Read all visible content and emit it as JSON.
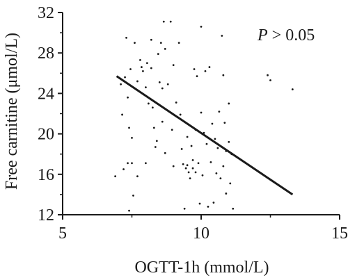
{
  "chart_data": {
    "type": "scatter",
    "xlabel": "OGTT-1h (mmol/L)",
    "ylabel": "Free carnitine (μmol/L)",
    "annotation": {
      "italic": "P",
      "rest": " > 0.05"
    },
    "xlim": [
      5,
      15
    ],
    "ylim": [
      12,
      32
    ],
    "xticks": [
      5,
      10,
      15
    ],
    "yticks": [
      12,
      16,
      20,
      24,
      28,
      32
    ],
    "grid": false,
    "colors": {
      "points": "#1a1a1a",
      "axis": "#1a1a1a",
      "line": "#1a1a1a"
    },
    "regression_line": {
      "x": [
        6.95,
        13.3
      ],
      "y": [
        25.7,
        14.0
      ]
    },
    "points": [
      {
        "x": 6.9,
        "y": 15.8
      },
      {
        "x": 7.1,
        "y": 24.9
      },
      {
        "x": 7.15,
        "y": 21.9
      },
      {
        "x": 7.2,
        "y": 16.5
      },
      {
        "x": 7.25,
        "y": 25.6
      },
      {
        "x": 7.3,
        "y": 29.5
      },
      {
        "x": 7.35,
        "y": 23.6
      },
      {
        "x": 7.35,
        "y": 17.1
      },
      {
        "x": 7.4,
        "y": 20.6
      },
      {
        "x": 7.4,
        "y": 12.4
      },
      {
        "x": 7.45,
        "y": 26.4
      },
      {
        "x": 7.5,
        "y": 19.6
      },
      {
        "x": 7.5,
        "y": 17.1
      },
      {
        "x": 7.55,
        "y": 13.9
      },
      {
        "x": 7.6,
        "y": 29.0
      },
      {
        "x": 7.7,
        "y": 25.2
      },
      {
        "x": 7.7,
        "y": 15.8
      },
      {
        "x": 7.8,
        "y": 27.3
      },
      {
        "x": 7.85,
        "y": 26.6
      },
      {
        "x": 7.9,
        "y": 26.2
      },
      {
        "x": 8.0,
        "y": 24.6
      },
      {
        "x": 8.0,
        "y": 17.1
      },
      {
        "x": 8.05,
        "y": 27.0
      },
      {
        "x": 8.1,
        "y": 23.0
      },
      {
        "x": 8.2,
        "y": 29.3
      },
      {
        "x": 8.2,
        "y": 26.5
      },
      {
        "x": 8.25,
        "y": 22.6
      },
      {
        "x": 8.3,
        "y": 20.6
      },
      {
        "x": 8.35,
        "y": 18.7
      },
      {
        "x": 8.4,
        "y": 19.3
      },
      {
        "x": 8.45,
        "y": 27.9
      },
      {
        "x": 8.5,
        "y": 25.1
      },
      {
        "x": 8.55,
        "y": 29.0
      },
      {
        "x": 8.6,
        "y": 24.5
      },
      {
        "x": 8.6,
        "y": 21.2
      },
      {
        "x": 8.65,
        "y": 31.1
      },
      {
        "x": 8.7,
        "y": 28.4
      },
      {
        "x": 8.7,
        "y": 18.1
      },
      {
        "x": 8.8,
        "y": 24.9
      },
      {
        "x": 8.85,
        "y": 22.2
      },
      {
        "x": 8.9,
        "y": 31.1
      },
      {
        "x": 8.95,
        "y": 20.4
      },
      {
        "x": 9.0,
        "y": 26.8
      },
      {
        "x": 9.0,
        "y": 16.8
      },
      {
        "x": 9.1,
        "y": 23.1
      },
      {
        "x": 9.2,
        "y": 29.0
      },
      {
        "x": 9.25,
        "y": 21.9
      },
      {
        "x": 9.3,
        "y": 18.5
      },
      {
        "x": 9.35,
        "y": 17.0
      },
      {
        "x": 9.4,
        "y": 12.6
      },
      {
        "x": 9.45,
        "y": 16.6
      },
      {
        "x": 9.5,
        "y": 19.7
      },
      {
        "x": 9.5,
        "y": 16.9
      },
      {
        "x": 9.55,
        "y": 16.2
      },
      {
        "x": 9.6,
        "y": 15.6
      },
      {
        "x": 9.65,
        "y": 18.8
      },
      {
        "x": 9.7,
        "y": 17.4
      },
      {
        "x": 9.7,
        "y": 16.6
      },
      {
        "x": 9.75,
        "y": 26.4
      },
      {
        "x": 9.8,
        "y": 20.4
      },
      {
        "x": 9.8,
        "y": 16.2
      },
      {
        "x": 9.85,
        "y": 25.7
      },
      {
        "x": 9.9,
        "y": 17.1
      },
      {
        "x": 9.95,
        "y": 13.1
      },
      {
        "x": 10.0,
        "y": 30.6
      },
      {
        "x": 10.0,
        "y": 22.1
      },
      {
        "x": 10.05,
        "y": 15.9
      },
      {
        "x": 10.1,
        "y": 20.1
      },
      {
        "x": 10.15,
        "y": 26.2
      },
      {
        "x": 10.2,
        "y": 19.0
      },
      {
        "x": 10.25,
        "y": 12.8
      },
      {
        "x": 10.3,
        "y": 26.6
      },
      {
        "x": 10.35,
        "y": 17.2
      },
      {
        "x": 10.4,
        "y": 21.0
      },
      {
        "x": 10.45,
        "y": 13.2
      },
      {
        "x": 10.5,
        "y": 19.5
      },
      {
        "x": 10.55,
        "y": 16.1
      },
      {
        "x": 10.6,
        "y": 18.6
      },
      {
        "x": 10.65,
        "y": 22.2
      },
      {
        "x": 10.7,
        "y": 15.6
      },
      {
        "x": 10.75,
        "y": 29.7
      },
      {
        "x": 10.8,
        "y": 25.8
      },
      {
        "x": 10.8,
        "y": 16.8
      },
      {
        "x": 10.85,
        "y": 21.1
      },
      {
        "x": 10.9,
        "y": 18.3
      },
      {
        "x": 10.9,
        "y": 14.1
      },
      {
        "x": 11.0,
        "y": 23.0
      },
      {
        "x": 11.0,
        "y": 19.2
      },
      {
        "x": 11.05,
        "y": 15.1
      },
      {
        "x": 11.1,
        "y": 18.0
      },
      {
        "x": 11.15,
        "y": 12.6
      },
      {
        "x": 12.4,
        "y": 25.8
      },
      {
        "x": 12.5,
        "y": 25.3
      },
      {
        "x": 13.3,
        "y": 24.4
      }
    ]
  }
}
